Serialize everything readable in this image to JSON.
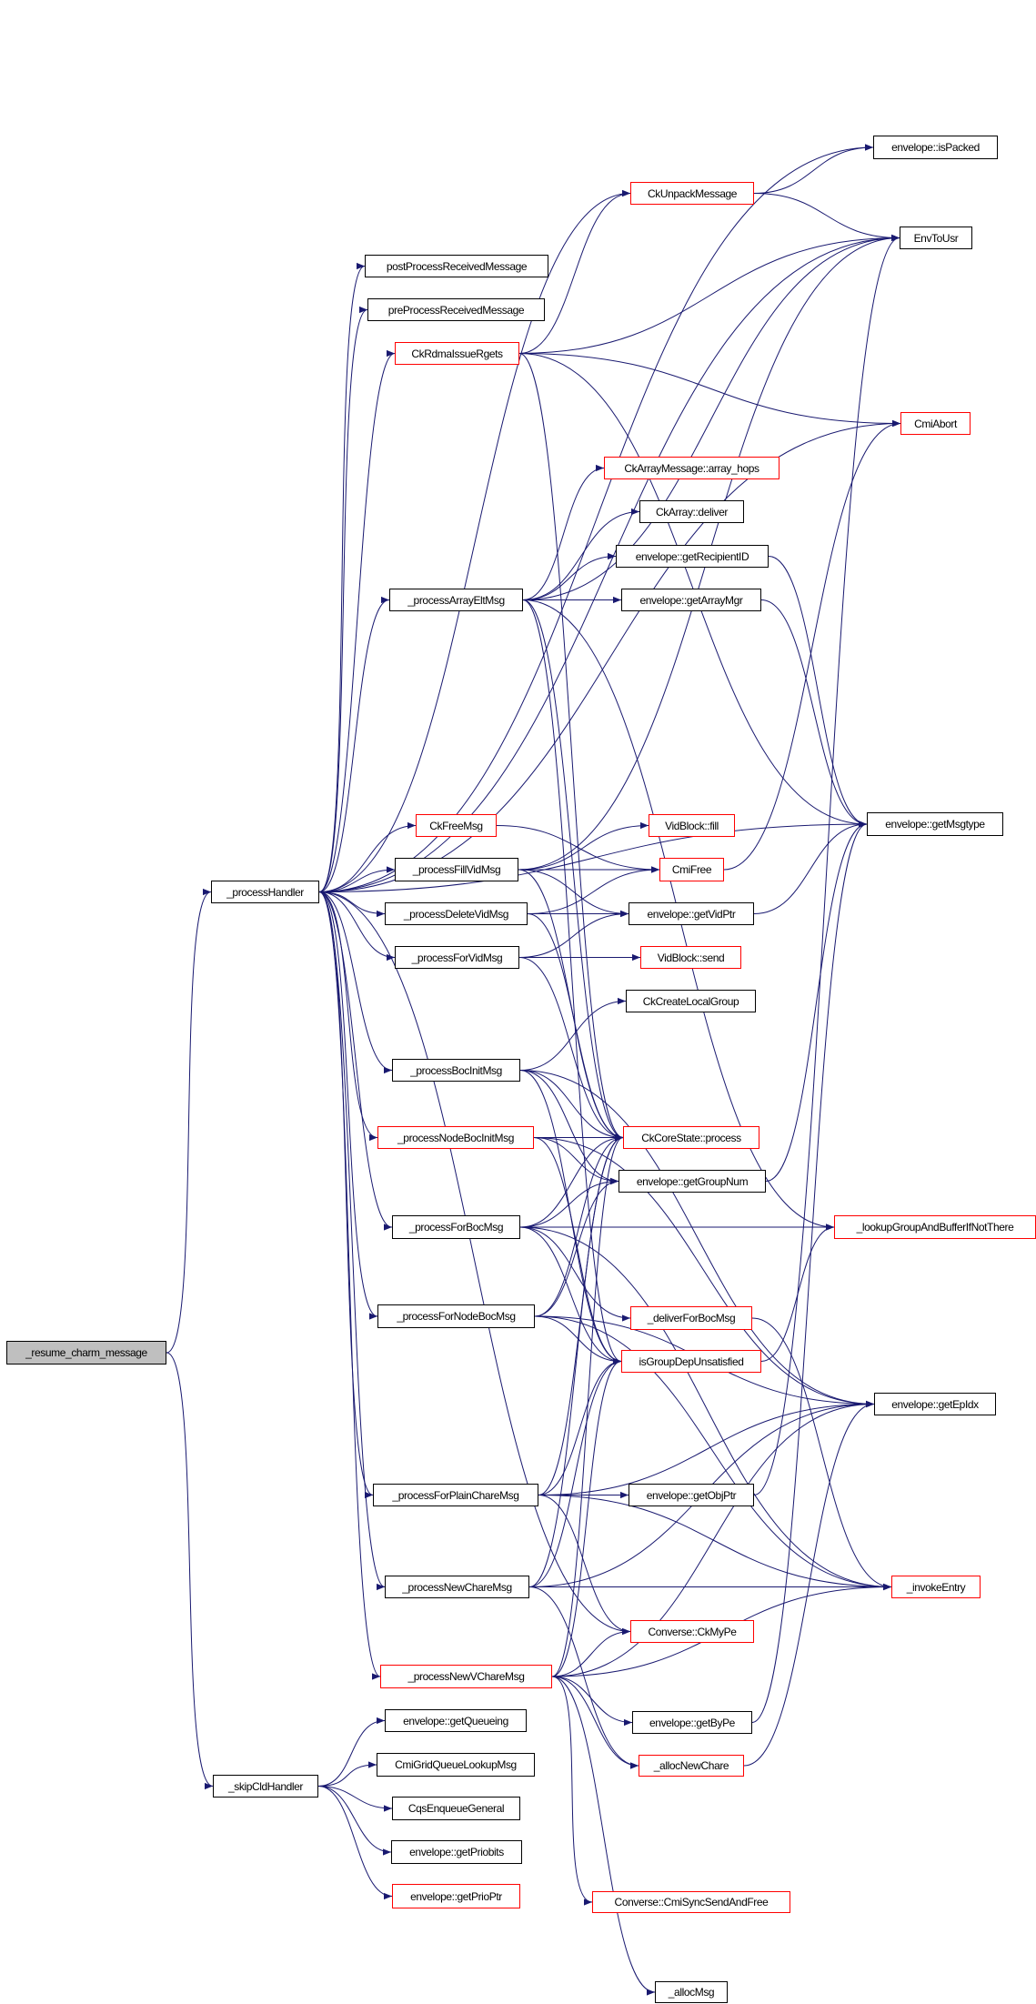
{
  "graph": {
    "type": "call-graph",
    "edge_color": "#191970",
    "node_border_colors": {
      "black": "#000000",
      "red": "#ff0000"
    },
    "root_fill": "#bfbfbf",
    "nodes": [
      {
        "id": "resume",
        "label": "_resume_charm_message",
        "style": "gray"
      },
      {
        "id": "processHandler",
        "label": "_processHandler",
        "style": "black"
      },
      {
        "id": "skipCld",
        "label": "_skipCldHandler",
        "style": "black"
      },
      {
        "id": "isPacked",
        "label": "envelope::isPacked",
        "style": "black"
      },
      {
        "id": "unpack",
        "label": "CkUnpackMessage",
        "style": "red"
      },
      {
        "id": "envToUsr",
        "label": "EnvToUsr",
        "style": "black"
      },
      {
        "id": "postProc",
        "label": "postProcessReceivedMessage",
        "style": "black"
      },
      {
        "id": "preProc",
        "label": "preProcessReceivedMessage",
        "style": "black"
      },
      {
        "id": "rdma",
        "label": "CkRdmaIssueRgets",
        "style": "red"
      },
      {
        "id": "cmiAbort",
        "label": "CmiAbort",
        "style": "red"
      },
      {
        "id": "arrayHops",
        "label": "CkArrayMessage::array_hops",
        "style": "red"
      },
      {
        "id": "arrayDeliver",
        "label": "CkArray::deliver",
        "style": "black"
      },
      {
        "id": "recipID",
        "label": "envelope::getRecipientID",
        "style": "black"
      },
      {
        "id": "arrayElt",
        "label": "_processArrayEltMsg",
        "style": "black"
      },
      {
        "id": "arrayMgr",
        "label": "envelope::getArrayMgr",
        "style": "black"
      },
      {
        "id": "msgtype",
        "label": "envelope::getMsgtype",
        "style": "black"
      },
      {
        "id": "freeMsg",
        "label": "CkFreeMsg",
        "style": "red"
      },
      {
        "id": "vidFill",
        "label": "VidBlock::fill",
        "style": "red"
      },
      {
        "id": "fillVid",
        "label": "_processFillVidMsg",
        "style": "black"
      },
      {
        "id": "cmiFree",
        "label": "CmiFree",
        "style": "red"
      },
      {
        "id": "deleteVid",
        "label": "_processDeleteVidMsg",
        "style": "black"
      },
      {
        "id": "vidPtr",
        "label": "envelope::getVidPtr",
        "style": "black"
      },
      {
        "id": "forVid",
        "label": "_processForVidMsg",
        "style": "black"
      },
      {
        "id": "vidSend",
        "label": "VidBlock::send",
        "style": "red"
      },
      {
        "id": "createLocal",
        "label": "CkCreateLocalGroup",
        "style": "black"
      },
      {
        "id": "bocInit",
        "label": "_processBocInitMsg",
        "style": "black"
      },
      {
        "id": "nodeBocInit",
        "label": "_processNodeBocInitMsg",
        "style": "red"
      },
      {
        "id": "coreProcess",
        "label": "CkCoreState::process",
        "style": "red"
      },
      {
        "id": "groupNum",
        "label": "envelope::getGroupNum",
        "style": "black"
      },
      {
        "id": "forBoc",
        "label": "_processForBocMsg",
        "style": "black"
      },
      {
        "id": "lookup",
        "label": "_lookupGroupAndBufferIfNotThere",
        "style": "red"
      },
      {
        "id": "deliverBoc",
        "label": "_deliverForBocMsg",
        "style": "red"
      },
      {
        "id": "forNodeBoc",
        "label": "_processForNodeBocMsg",
        "style": "black"
      },
      {
        "id": "groupDep",
        "label": "isGroupDepUnsatisfied",
        "style": "red"
      },
      {
        "id": "epIdx",
        "label": "envelope::getEpIdx",
        "style": "black"
      },
      {
        "id": "plainChare",
        "label": "_processForPlainChareMsg",
        "style": "black"
      },
      {
        "id": "objPtr",
        "label": "envelope::getObjPtr",
        "style": "black"
      },
      {
        "id": "invoke",
        "label": "_invokeEntry",
        "style": "red"
      },
      {
        "id": "newChare",
        "label": "_processNewChareMsg",
        "style": "black"
      },
      {
        "id": "myPe",
        "label": "Converse::CkMyPe",
        "style": "red"
      },
      {
        "id": "newVChare",
        "label": "_processNewVChareMsg",
        "style": "red"
      },
      {
        "id": "queueing",
        "label": "envelope::getQueueing",
        "style": "black"
      },
      {
        "id": "byPe",
        "label": "envelope::getByPe",
        "style": "black"
      },
      {
        "id": "gridQueue",
        "label": "CmiGridQueueLookupMsg",
        "style": "black"
      },
      {
        "id": "allocNew",
        "label": "_allocNewChare",
        "style": "red"
      },
      {
        "id": "cqs",
        "label": "CqsEnqueueGeneral",
        "style": "black"
      },
      {
        "id": "priobits",
        "label": "envelope::getPriobits",
        "style": "black"
      },
      {
        "id": "prioPtr",
        "label": "envelope::getPrioPtr",
        "style": "red"
      },
      {
        "id": "syncSend",
        "label": "Converse::CmiSyncSendAndFree",
        "style": "red"
      },
      {
        "id": "allocMsg",
        "label": "_allocMsg",
        "style": "black"
      }
    ],
    "edges": [
      [
        "resume",
        "processHandler"
      ],
      [
        "resume",
        "skipCld"
      ],
      [
        "processHandler",
        "isPacked"
      ],
      [
        "processHandler",
        "envToUsr"
      ],
      [
        "processHandler",
        "unpack"
      ],
      [
        "processHandler",
        "postProc"
      ],
      [
        "processHandler",
        "preProc"
      ],
      [
        "processHandler",
        "rdma"
      ],
      [
        "processHandler",
        "cmiAbort"
      ],
      [
        "processHandler",
        "arrayElt"
      ],
      [
        "processHandler",
        "msgtype"
      ],
      [
        "processHandler",
        "freeMsg"
      ],
      [
        "processHandler",
        "fillVid"
      ],
      [
        "processHandler",
        "deleteVid"
      ],
      [
        "processHandler",
        "forVid"
      ],
      [
        "processHandler",
        "bocInit"
      ],
      [
        "processHandler",
        "nodeBocInit"
      ],
      [
        "processHandler",
        "forBoc"
      ],
      [
        "processHandler",
        "forNodeBoc"
      ],
      [
        "processHandler",
        "plainChare"
      ],
      [
        "processHandler",
        "newChare"
      ],
      [
        "processHandler",
        "newVChare"
      ],
      [
        "processHandler",
        "myPe"
      ],
      [
        "unpack",
        "isPacked"
      ],
      [
        "unpack",
        "envToUsr"
      ],
      [
        "rdma",
        "unpack"
      ],
      [
        "rdma",
        "envToUsr"
      ],
      [
        "rdma",
        "cmiAbort"
      ],
      [
        "rdma",
        "msgtype"
      ],
      [
        "rdma",
        "coreProcess"
      ],
      [
        "arrayElt",
        "arrayHops"
      ],
      [
        "arrayElt",
        "arrayDeliver"
      ],
      [
        "arrayElt",
        "recipID"
      ],
      [
        "arrayElt",
        "arrayMgr"
      ],
      [
        "arrayElt",
        "envToUsr"
      ],
      [
        "arrayElt",
        "coreProcess"
      ],
      [
        "arrayElt",
        "lookup"
      ],
      [
        "arrayElt",
        "groupDep"
      ],
      [
        "recipID",
        "msgtype"
      ],
      [
        "arrayMgr",
        "msgtype"
      ],
      [
        "freeMsg",
        "cmiFree"
      ],
      [
        "cmiFree",
        "cmiAbort"
      ],
      [
        "fillVid",
        "vidFill"
      ],
      [
        "fillVid",
        "cmiFree"
      ],
      [
        "fillVid",
        "vidPtr"
      ],
      [
        "fillVid",
        "coreProcess"
      ],
      [
        "fillVid",
        "envToUsr"
      ],
      [
        "deleteVid",
        "cmiFree"
      ],
      [
        "deleteVid",
        "vidPtr"
      ],
      [
        "deleteVid",
        "coreProcess"
      ],
      [
        "forVid",
        "vidPtr"
      ],
      [
        "forVid",
        "vidSend"
      ],
      [
        "forVid",
        "coreProcess"
      ],
      [
        "vidPtr",
        "msgtype"
      ],
      [
        "bocInit",
        "createLocal"
      ],
      [
        "bocInit",
        "coreProcess"
      ],
      [
        "bocInit",
        "groupNum"
      ],
      [
        "bocInit",
        "epIdx"
      ],
      [
        "bocInit",
        "groupDep"
      ],
      [
        "nodeBocInit",
        "coreProcess"
      ],
      [
        "nodeBocInit",
        "groupNum"
      ],
      [
        "nodeBocInit",
        "epIdx"
      ],
      [
        "nodeBocInit",
        "groupDep"
      ],
      [
        "groupNum",
        "msgtype"
      ],
      [
        "forBoc",
        "coreProcess"
      ],
      [
        "forBoc",
        "groupNum"
      ],
      [
        "forBoc",
        "lookup"
      ],
      [
        "forBoc",
        "deliverBoc"
      ],
      [
        "forBoc",
        "groupDep"
      ],
      [
        "forBoc",
        "invoke"
      ],
      [
        "forNodeBoc",
        "coreProcess"
      ],
      [
        "forNodeBoc",
        "groupNum"
      ],
      [
        "forNodeBoc",
        "groupDep"
      ],
      [
        "forNodeBoc",
        "epIdx"
      ],
      [
        "forNodeBoc",
        "invoke"
      ],
      [
        "deliverBoc",
        "invoke"
      ],
      [
        "groupDep",
        "lookup"
      ],
      [
        "plainChare",
        "objPtr"
      ],
      [
        "plainChare",
        "coreProcess"
      ],
      [
        "plainChare",
        "groupDep"
      ],
      [
        "plainChare",
        "epIdx"
      ],
      [
        "plainChare",
        "invoke"
      ],
      [
        "plainChare",
        "myPe"
      ],
      [
        "objPtr",
        "envToUsr"
      ],
      [
        "newChare",
        "coreProcess"
      ],
      [
        "newChare",
        "groupDep"
      ],
      [
        "newChare",
        "epIdx"
      ],
      [
        "newChare",
        "allocNew"
      ],
      [
        "newChare",
        "invoke"
      ],
      [
        "newVChare",
        "myPe"
      ],
      [
        "newVChare",
        "byPe"
      ],
      [
        "newVChare",
        "allocNew"
      ],
      [
        "newVChare",
        "coreProcess"
      ],
      [
        "newVChare",
        "groupDep"
      ],
      [
        "newVChare",
        "epIdx"
      ],
      [
        "newVChare",
        "invoke"
      ],
      [
        "newVChare",
        "syncSend"
      ],
      [
        "newVChare",
        "allocMsg"
      ],
      [
        "byPe",
        "msgtype"
      ],
      [
        "allocNew",
        "epIdx"
      ],
      [
        "skipCld",
        "queueing"
      ],
      [
        "skipCld",
        "gridQueue"
      ],
      [
        "skipCld",
        "cqs"
      ],
      [
        "skipCld",
        "priobits"
      ],
      [
        "skipCld",
        "prioPtr"
      ]
    ]
  }
}
